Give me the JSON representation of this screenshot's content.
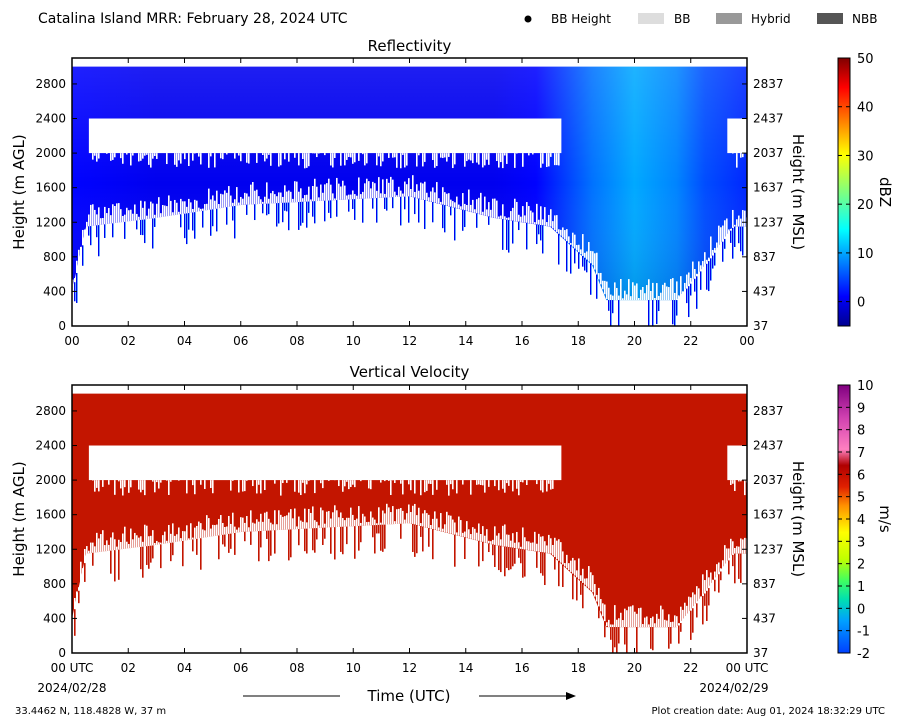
{
  "header": {
    "title": "Catalina Island MRR:  February 28, 2024 UTC",
    "legend": [
      {
        "label": "BB Height",
        "kind": "dot",
        "color": "#000000"
      },
      {
        "label": "BB",
        "kind": "swatch",
        "color": "#dddddd"
      },
      {
        "label": "Hybrid",
        "kind": "swatch",
        "color": "#999999"
      },
      {
        "label": "NBB",
        "kind": "swatch",
        "color": "#555555"
      }
    ]
  },
  "chart_data": [
    {
      "type": "heatmap",
      "title": "Reflectivity",
      "variable": "reflectivity",
      "ylabel": "Height (m AGL)",
      "ylabel_right": "Height (m MSL)",
      "xlim": [
        0,
        24
      ],
      "ylim": [
        0,
        3100
      ],
      "xticks": [
        "00",
        "02",
        "04",
        "06",
        "08",
        "10",
        "12",
        "14",
        "16",
        "18",
        "20",
        "22",
        "00"
      ],
      "yticks": [
        0,
        400,
        800,
        1200,
        1600,
        2000,
        2400,
        2800
      ],
      "yticks_right": [
        "37",
        "437",
        "837",
        "1237",
        "1637",
        "2037",
        "2437",
        "2837"
      ],
      "colorbar": {
        "label": "dBZ",
        "range": [
          -5,
          50
        ],
        "ticks": [
          "0",
          "10",
          "20",
          "30",
          "40",
          "50"
        ],
        "tick_values": [
          0,
          10,
          20,
          30,
          40,
          50
        ],
        "colormap": "jet"
      },
      "echo_top_m": 3000,
      "gap_layer_m": [
        2000,
        2400
      ],
      "lower_echo_base_m": [
        [
          0,
          400
        ],
        [
          0.5,
          1150
        ],
        [
          3,
          1250
        ],
        [
          6,
          1400
        ],
        [
          9,
          1450
        ],
        [
          12,
          1500
        ],
        [
          15,
          1250
        ],
        [
          17,
          1150
        ],
        [
          18.5,
          700
        ],
        [
          19,
          300
        ],
        [
          20,
          300
        ],
        [
          21.5,
          300
        ],
        [
          22.5,
          700
        ],
        [
          23.5,
          1150
        ],
        [
          24,
          1150
        ]
      ],
      "gap_intervals_h": [
        [
          0.6,
          17.4
        ],
        [
          23.3,
          24
        ]
      ],
      "reflectivity_dbz": [
        [
          0,
          2
        ],
        [
          3,
          1
        ],
        [
          15,
          1
        ],
        [
          16.5,
          2
        ],
        [
          18.5,
          8
        ],
        [
          20,
          11
        ],
        [
          21.5,
          9
        ],
        [
          22.5,
          6
        ],
        [
          24,
          4
        ]
      ]
    },
    {
      "type": "heatmap",
      "title": "Vertical Velocity",
      "variable": "vertical_velocity",
      "xlabel": "Time (UTC)",
      "ylabel": "Height (m AGL)",
      "ylabel_right": "Height (m MSL)",
      "xlim": [
        0,
        24
      ],
      "ylim": [
        0,
        3100
      ],
      "xticks": [
        "00 UTC",
        "02",
        "04",
        "06",
        "08",
        "10",
        "12",
        "14",
        "16",
        "18",
        "20",
        "22",
        "00 UTC"
      ],
      "date_start": "2024/02/28",
      "date_end": "2024/02/29",
      "yticks": [
        0,
        400,
        800,
        1200,
        1600,
        2000,
        2400,
        2800
      ],
      "yticks_right": [
        "37",
        "437",
        "837",
        "1237",
        "1637",
        "2037",
        "2437",
        "2837"
      ],
      "colorbar": {
        "label": "m/s",
        "range": [
          -2,
          10
        ],
        "ticks": [
          "-2",
          "-1",
          "0",
          "1",
          "2",
          "3",
          "4",
          "5",
          "6",
          "7",
          "8",
          "9",
          "10"
        ],
        "tick_values": [
          -2,
          -1,
          0,
          1,
          2,
          3,
          4,
          5,
          6,
          7,
          8,
          9,
          10
        ]
      },
      "dominant_velocity_ms": 6,
      "fill_color": "#c31500",
      "echo_top_m": 3000,
      "gap_layer_m": [
        2000,
        2400
      ],
      "lower_echo_base_m": [
        [
          0,
          400
        ],
        [
          0.5,
          1150
        ],
        [
          3,
          1250
        ],
        [
          6,
          1400
        ],
        [
          9,
          1450
        ],
        [
          12,
          1500
        ],
        [
          15,
          1250
        ],
        [
          17,
          1150
        ],
        [
          18.5,
          700
        ],
        [
          19,
          300
        ],
        [
          20,
          300
        ],
        [
          21.5,
          300
        ],
        [
          22.5,
          700
        ],
        [
          23.5,
          1150
        ],
        [
          24,
          1150
        ]
      ],
      "gap_intervals_h": [
        [
          0.6,
          17.4
        ],
        [
          23.3,
          24
        ]
      ]
    }
  ],
  "footer": {
    "location": "33.4462 N, 118.4828 W, 37 m",
    "creation": "Plot creation date: Aug 01, 2024 18:32:29 UTC"
  },
  "colors": {
    "plot_bg": "#ffffff",
    "axis": "#000000"
  }
}
